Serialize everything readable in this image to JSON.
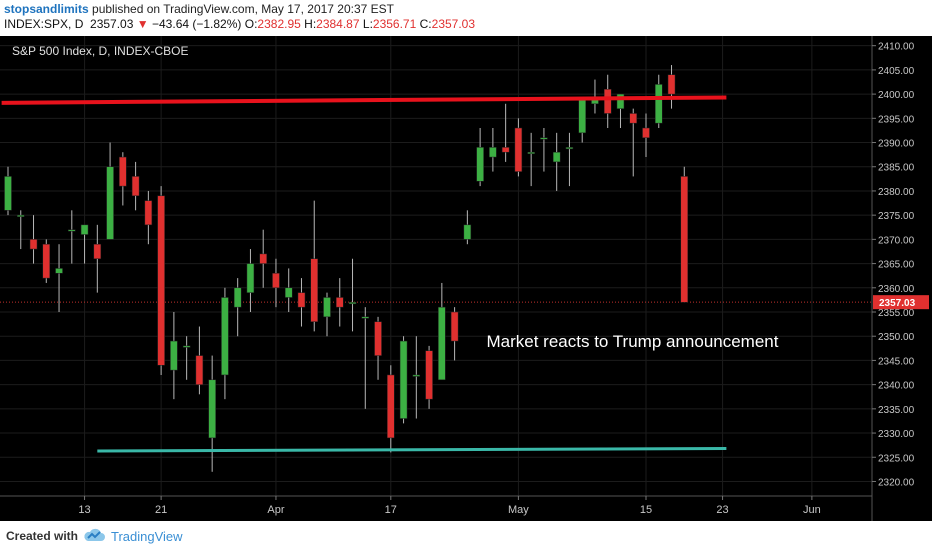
{
  "header": {
    "author": "stopsandlimits",
    "published_text": "published on TradingView.com, May 17, 2017 20:37 EST",
    "symbol": "INDEX:SPX, D",
    "last": "2357.03",
    "change": "−43.64 (−1.82%)",
    "o_label": "O:",
    "o": "2382.95",
    "h_label": "H:",
    "h": "2384.87",
    "l_label": "L:",
    "l": "2356.71",
    "c_label": "C:",
    "c": "2357.03"
  },
  "footer": {
    "created_with": "Created with",
    "brand": "TradingView"
  },
  "colors": {
    "up": "#3cb043",
    "down": "#e0302f",
    "resistance": "#e8121c",
    "support": "#3ab8a8",
    "background": "#000000"
  },
  "chart_data": {
    "type": "candlestick",
    "title": "S&P 500 Index, D, INDEX-CBOE",
    "annotation": "Market reacts to Trump announcement",
    "ylim": [
      2317,
      2412
    ],
    "y_ticks": [
      "2320.00",
      "2325.00",
      "2330.00",
      "2335.00",
      "2340.00",
      "2345.00",
      "2350.00",
      "2355.00",
      "2360.00",
      "2365.00",
      "2370.00",
      "2375.00",
      "2380.00",
      "2385.00",
      "2390.00",
      "2395.00",
      "2400.00",
      "2405.00",
      "2410.00"
    ],
    "x_tick_labels": [
      {
        "label": "13",
        "index": 6
      },
      {
        "label": "21",
        "index": 12
      },
      {
        "label": "Apr",
        "index": 21
      },
      {
        "label": "17",
        "index": 30
      },
      {
        "label": "May",
        "index": 40
      },
      {
        "label": "15",
        "index": 50
      },
      {
        "label": "23",
        "index": 56
      },
      {
        "label": "Jun",
        "index": 63
      }
    ],
    "last_price_label": "2357.03",
    "candles": [
      {
        "o": 2376,
        "h": 2385,
        "l": 2375,
        "c": 2383
      },
      {
        "o": 2375,
        "h": 2376,
        "l": 2368,
        "c": 2375
      },
      {
        "o": 2370,
        "h": 2375,
        "l": 2365,
        "c": 2368
      },
      {
        "o": 2369,
        "h": 2370,
        "l": 2361,
        "c": 2362
      },
      {
        "o": 2363,
        "h": 2369,
        "l": 2355,
        "c": 2364
      },
      {
        "o": 2372,
        "h": 2376,
        "l": 2365,
        "c": 2372
      },
      {
        "o": 2371,
        "h": 2373,
        "l": 2365,
        "c": 2373
      },
      {
        "o": 2369,
        "h": 2373,
        "l": 2359,
        "c": 2366
      },
      {
        "o": 2370,
        "h": 2390,
        "l": 2370,
        "c": 2385
      },
      {
        "o": 2387,
        "h": 2388,
        "l": 2377,
        "c": 2381
      },
      {
        "o": 2383,
        "h": 2386,
        "l": 2376,
        "c": 2379
      },
      {
        "o": 2378,
        "h": 2380,
        "l": 2369,
        "c": 2373
      },
      {
        "o": 2379,
        "h": 2381,
        "l": 2342,
        "c": 2344
      },
      {
        "o": 2343,
        "h": 2355,
        "l": 2337,
        "c": 2349
      },
      {
        "o": 2348,
        "h": 2350,
        "l": 2341,
        "c": 2348
      },
      {
        "o": 2346,
        "h": 2352,
        "l": 2338,
        "c": 2340
      },
      {
        "o": 2329,
        "h": 2346,
        "l": 2322,
        "c": 2341
      },
      {
        "o": 2342,
        "h": 2360,
        "l": 2337,
        "c": 2358
      },
      {
        "o": 2356,
        "h": 2362,
        "l": 2350,
        "c": 2360
      },
      {
        "o": 2359,
        "h": 2368,
        "l": 2355,
        "c": 2365
      },
      {
        "o": 2367,
        "h": 2372,
        "l": 2360,
        "c": 2365
      },
      {
        "o": 2363,
        "h": 2366,
        "l": 2356,
        "c": 2360
      },
      {
        "o": 2358,
        "h": 2364,
        "l": 2355,
        "c": 2360
      },
      {
        "o": 2359,
        "h": 2362,
        "l": 2352,
        "c": 2356
      },
      {
        "o": 2366,
        "h": 2378,
        "l": 2351,
        "c": 2353
      },
      {
        "o": 2354,
        "h": 2359,
        "l": 2350,
        "c": 2358
      },
      {
        "o": 2358,
        "h": 2362,
        "l": 2352,
        "c": 2356
      },
      {
        "o": 2357,
        "h": 2366,
        "l": 2351,
        "c": 2357
      },
      {
        "o": 2354,
        "h": 2356,
        "l": 2335,
        "c": 2354
      },
      {
        "o": 2353,
        "h": 2354,
        "l": 2341,
        "c": 2346
      },
      {
        "o": 2342,
        "h": 2344,
        "l": 2326,
        "c": 2329
      },
      {
        "o": 2333,
        "h": 2350,
        "l": 2332,
        "c": 2349
      },
      {
        "o": 2342,
        "h": 2350,
        "l": 2333,
        "c": 2342
      },
      {
        "o": 2347,
        "h": 2348,
        "l": 2335,
        "c": 2337
      },
      {
        "o": 2341,
        "h": 2361,
        "l": 2341,
        "c": 2356
      },
      {
        "o": 2355,
        "h": 2356,
        "l": 2345,
        "c": 2349
      },
      {
        "o": 2370,
        "h": 2376,
        "l": 2369,
        "c": 2373
      },
      {
        "o": 2382,
        "h": 2393,
        "l": 2381,
        "c": 2389
      },
      {
        "o": 2387,
        "h": 2393,
        "l": 2384,
        "c": 2389
      },
      {
        "o": 2389,
        "h": 2398,
        "l": 2386,
        "c": 2388
      },
      {
        "o": 2393,
        "h": 2395,
        "l": 2383,
        "c": 2384
      },
      {
        "o": 2388,
        "h": 2392,
        "l": 2381,
        "c": 2388
      },
      {
        "o": 2391,
        "h": 2393,
        "l": 2384,
        "c": 2391
      },
      {
        "o": 2386,
        "h": 2392,
        "l": 2380,
        "c": 2388
      },
      {
        "o": 2389,
        "h": 2392,
        "l": 2381,
        "c": 2389
      },
      {
        "o": 2392,
        "h": 2399,
        "l": 2390,
        "c": 2399
      },
      {
        "o": 2398,
        "h": 2403,
        "l": 2396,
        "c": 2399
      },
      {
        "o": 2401,
        "h": 2404,
        "l": 2393,
        "c": 2396
      },
      {
        "o": 2397,
        "h": 2400,
        "l": 2393,
        "c": 2400
      },
      {
        "o": 2396,
        "h": 2397,
        "l": 2383,
        "c": 2394
      },
      {
        "o": 2393,
        "h": 2396,
        "l": 2387,
        "c": 2391
      },
      {
        "o": 2394,
        "h": 2404,
        "l": 2393,
        "c": 2402
      },
      {
        "o": 2404,
        "h": 2406,
        "l": 2397,
        "c": 2400
      },
      {
        "o": 2383,
        "h": 2385,
        "l": 2357,
        "c": 2357
      }
    ],
    "lines": [
      {
        "name": "resistance",
        "x0": -0.5,
        "y0": 2398.2,
        "x1": 56.3,
        "y1": 2399.3
      },
      {
        "name": "support",
        "x0": 7,
        "y0": 2326.3,
        "x1": 56.3,
        "y1": 2326.8
      }
    ],
    "annotation_x_index": 37.5,
    "annotation_y": 2349
  }
}
